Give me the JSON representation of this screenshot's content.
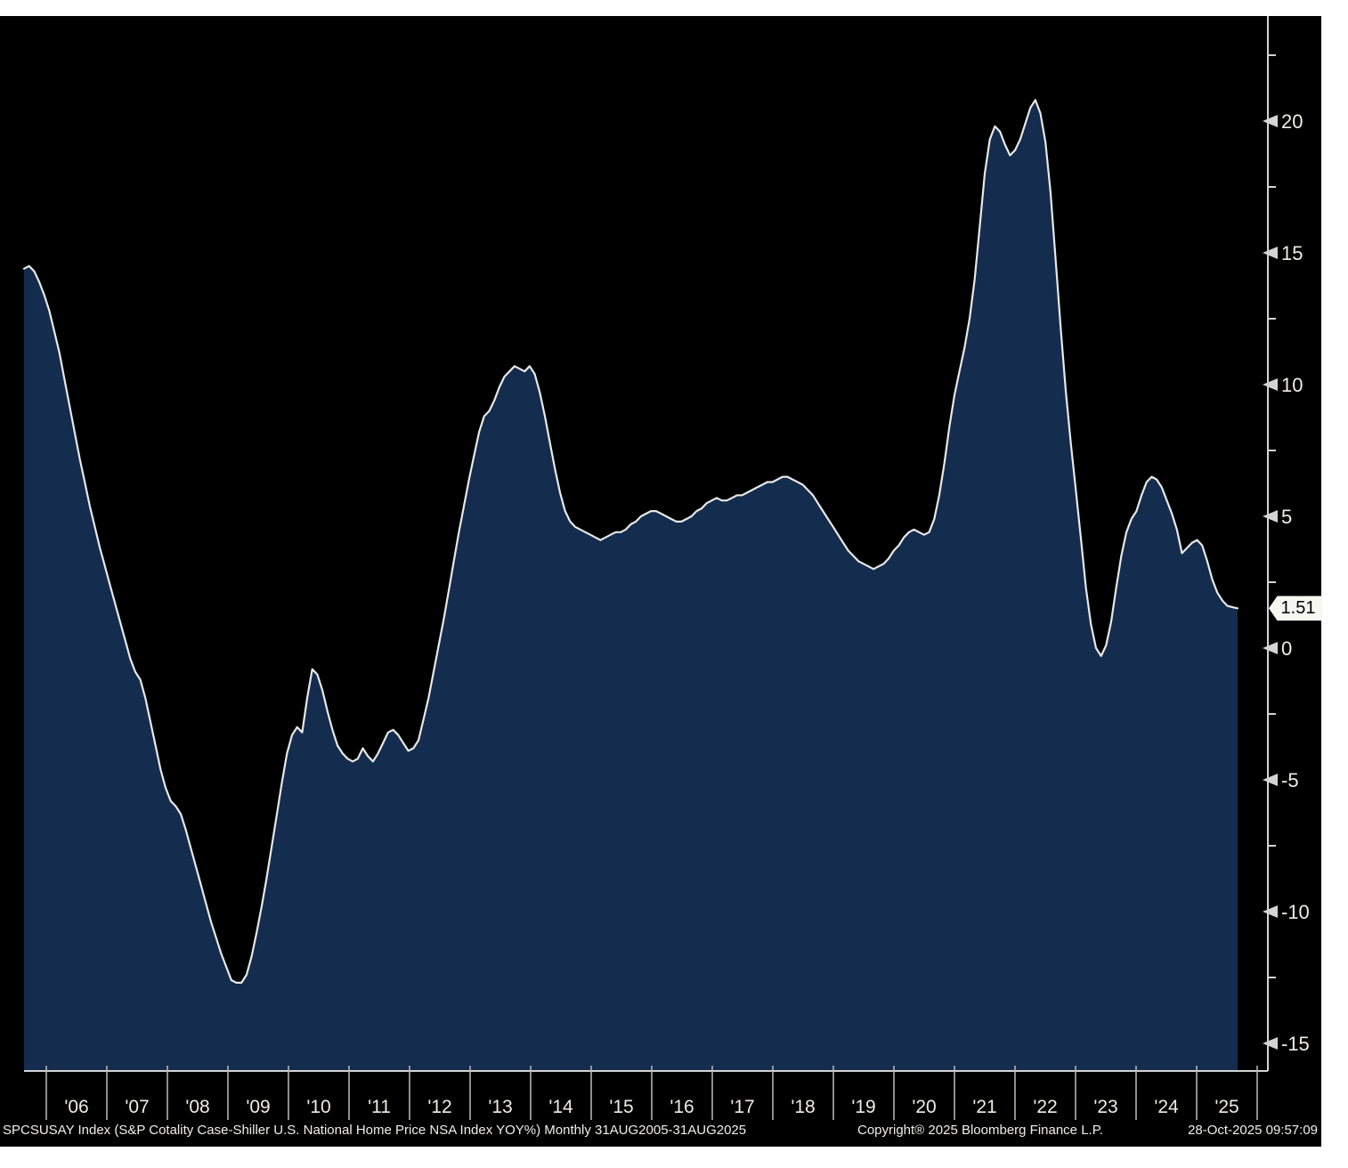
{
  "footer": {
    "left": "SPCSUSAY Index (S&P Cotality Case-Shiller U.S. National Home Price NSA Index YOY%) Monthly 31AUG2005-31AUG2025",
    "copyright": "Copyright® 2025 Bloomberg Finance L.P.",
    "timestamp": "28-Oct-2025 09:57:09"
  },
  "colors": {
    "page_bg": "#ffffff",
    "canvas_bg": "#000000",
    "area_fill": "#142c4d",
    "line": "#e8e8e8",
    "axis": "#d4d4d4",
    "separator": "#bdbdbd",
    "tick_label": "#f0eee4",
    "year_label": "#efece2",
    "badge_bg": "#f7f7f2",
    "badge_text": "#000000",
    "footer_text": "#f0efe7"
  },
  "chart_data": {
    "type": "area",
    "title": "S&P Cotality Case-Shiller U.S. National Home Price NSA Index YOY%",
    "ticker": "SPCSUSAY Index",
    "frequency": "Monthly",
    "period": "31AUG2005-31AUG2025",
    "grid": false,
    "legend_position": "none",
    "xlabel": "",
    "ylabel": "",
    "x_labels": [
      "'06",
      "'07",
      "'08",
      "'09",
      "'10",
      "'11",
      "'12",
      "'13",
      "'14",
      "'15",
      "'16",
      "'17",
      "'18",
      "'19",
      "'20",
      "'21",
      "'22",
      "'23",
      "'24",
      "'25"
    ],
    "y_ticks": [
      20,
      15,
      10,
      5,
      0,
      -5,
      -10,
      -15
    ],
    "y_minor_ticks": [
      22.5,
      17.5,
      12.5,
      7.5,
      2.5,
      -2.5,
      -7.5,
      -12.5
    ],
    "ylim": [
      -15.9,
      23.4
    ],
    "x_start": "Aug 2005",
    "x_end": "Aug 2025",
    "last_value": 1.51,
    "last_value_label": "1.51",
    "series": [
      {
        "name": "SPCSUSAY Index YOY%",
        "values": [
          14.4,
          14.5,
          14.3,
          13.9,
          13.4,
          12.8,
          12.0,
          11.2,
          10.2,
          9.2,
          8.2,
          7.2,
          6.3,
          5.4,
          4.6,
          3.8,
          3.1,
          2.4,
          1.7,
          1.0,
          0.3,
          -0.4,
          -0.9,
          -1.2,
          -1.9,
          -2.8,
          -3.7,
          -4.6,
          -5.3,
          -5.8,
          -6.0,
          -6.3,
          -6.9,
          -7.6,
          -8.3,
          -9.0,
          -9.7,
          -10.4,
          -11.0,
          -11.6,
          -12.1,
          -12.6,
          -12.7,
          -12.7,
          -12.4,
          -11.7,
          -10.8,
          -9.8,
          -8.7,
          -7.5,
          -6.3,
          -5.1,
          -4.0,
          -3.3,
          -3.0,
          -3.2,
          -1.9,
          -0.8,
          -1.0,
          -1.6,
          -2.4,
          -3.1,
          -3.7,
          -4.0,
          -4.2,
          -4.3,
          -4.2,
          -3.8,
          -4.1,
          -4.3,
          -4.0,
          -3.6,
          -3.2,
          -3.1,
          -3.3,
          -3.6,
          -3.9,
          -3.8,
          -3.5,
          -2.7,
          -1.9,
          -0.9,
          0.1,
          1.1,
          2.2,
          3.3,
          4.4,
          5.4,
          6.4,
          7.3,
          8.2,
          8.8,
          9.0,
          9.4,
          9.9,
          10.3,
          10.5,
          10.7,
          10.6,
          10.5,
          10.7,
          10.4,
          9.7,
          8.8,
          7.8,
          6.8,
          5.9,
          5.2,
          4.8,
          4.6,
          4.5,
          4.4,
          4.3,
          4.2,
          4.1,
          4.2,
          4.3,
          4.4,
          4.4,
          4.5,
          4.7,
          4.8,
          5.0,
          5.1,
          5.2,
          5.2,
          5.1,
          5.0,
          4.9,
          4.8,
          4.8,
          4.9,
          5.0,
          5.2,
          5.3,
          5.5,
          5.6,
          5.7,
          5.6,
          5.6,
          5.7,
          5.8,
          5.8,
          5.9,
          6.0,
          6.1,
          6.2,
          6.3,
          6.3,
          6.4,
          6.5,
          6.5,
          6.4,
          6.3,
          6.2,
          6.0,
          5.8,
          5.5,
          5.2,
          4.9,
          4.6,
          4.3,
          4.0,
          3.7,
          3.5,
          3.3,
          3.2,
          3.1,
          3.0,
          3.1,
          3.2,
          3.4,
          3.7,
          3.9,
          4.2,
          4.4,
          4.5,
          4.4,
          4.3,
          4.4,
          4.9,
          5.8,
          7.0,
          8.4,
          9.6,
          10.5,
          11.4,
          12.5,
          14.0,
          16.0,
          18.0,
          19.3,
          19.8,
          19.6,
          19.1,
          18.7,
          18.9,
          19.3,
          19.9,
          20.5,
          20.8,
          20.3,
          19.2,
          17.3,
          14.8,
          12.2,
          9.8,
          7.8,
          6.0,
          4.2,
          2.3,
          0.9,
          0.0,
          -0.3,
          0.1,
          1.0,
          2.3,
          3.5,
          4.4,
          4.9,
          5.2,
          5.8,
          6.3,
          6.5,
          6.4,
          6.1,
          5.6,
          5.1,
          4.5,
          3.6,
          3.8,
          4.0,
          4.1,
          3.9,
          3.3,
          2.6,
          2.1,
          1.8,
          1.6,
          1.55,
          1.51
        ]
      }
    ]
  }
}
